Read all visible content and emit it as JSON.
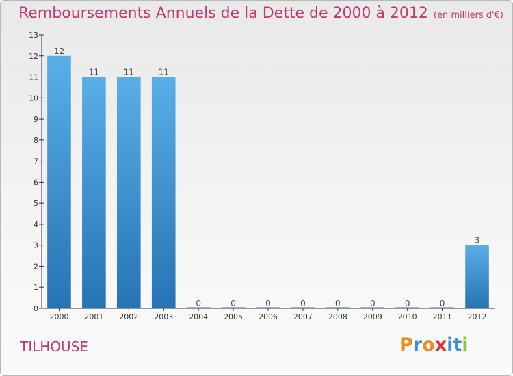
{
  "header": {
    "title": "Remboursements Annuels de la Dette de 2000 à 2012",
    "unit": "(en milliers d'€)"
  },
  "footer": {
    "commune": "TILHOUSE",
    "logo_text": "Proxiti"
  },
  "colors": {
    "title": "#c0386e",
    "bar_top": "#5aaee6",
    "bar_bottom": "#2674b4",
    "axis": "#333333",
    "logo": [
      "#f08a1c",
      "#3a8fd8",
      "#f08a1c",
      "#e0303a",
      "#3a8fd8",
      "#3a8fd8",
      "#8cc63f"
    ]
  },
  "chart_data": {
    "type": "bar",
    "title": "Remboursements Annuels de la Dette de 2000 à 2012",
    "xlabel": "",
    "ylabel": "",
    "categories": [
      "2000",
      "2001",
      "2002",
      "2003",
      "2004",
      "2005",
      "2006",
      "2007",
      "2008",
      "2009",
      "2010",
      "2011",
      "2012"
    ],
    "values": [
      12,
      11,
      11,
      11,
      0,
      0,
      0,
      0,
      0,
      0,
      0,
      0,
      3
    ],
    "ylim": [
      0,
      13
    ],
    "yticks": [
      0,
      1,
      2,
      3,
      4,
      5,
      6,
      7,
      8,
      9,
      10,
      11,
      12,
      13
    ],
    "grid": false,
    "legend": "none"
  }
}
